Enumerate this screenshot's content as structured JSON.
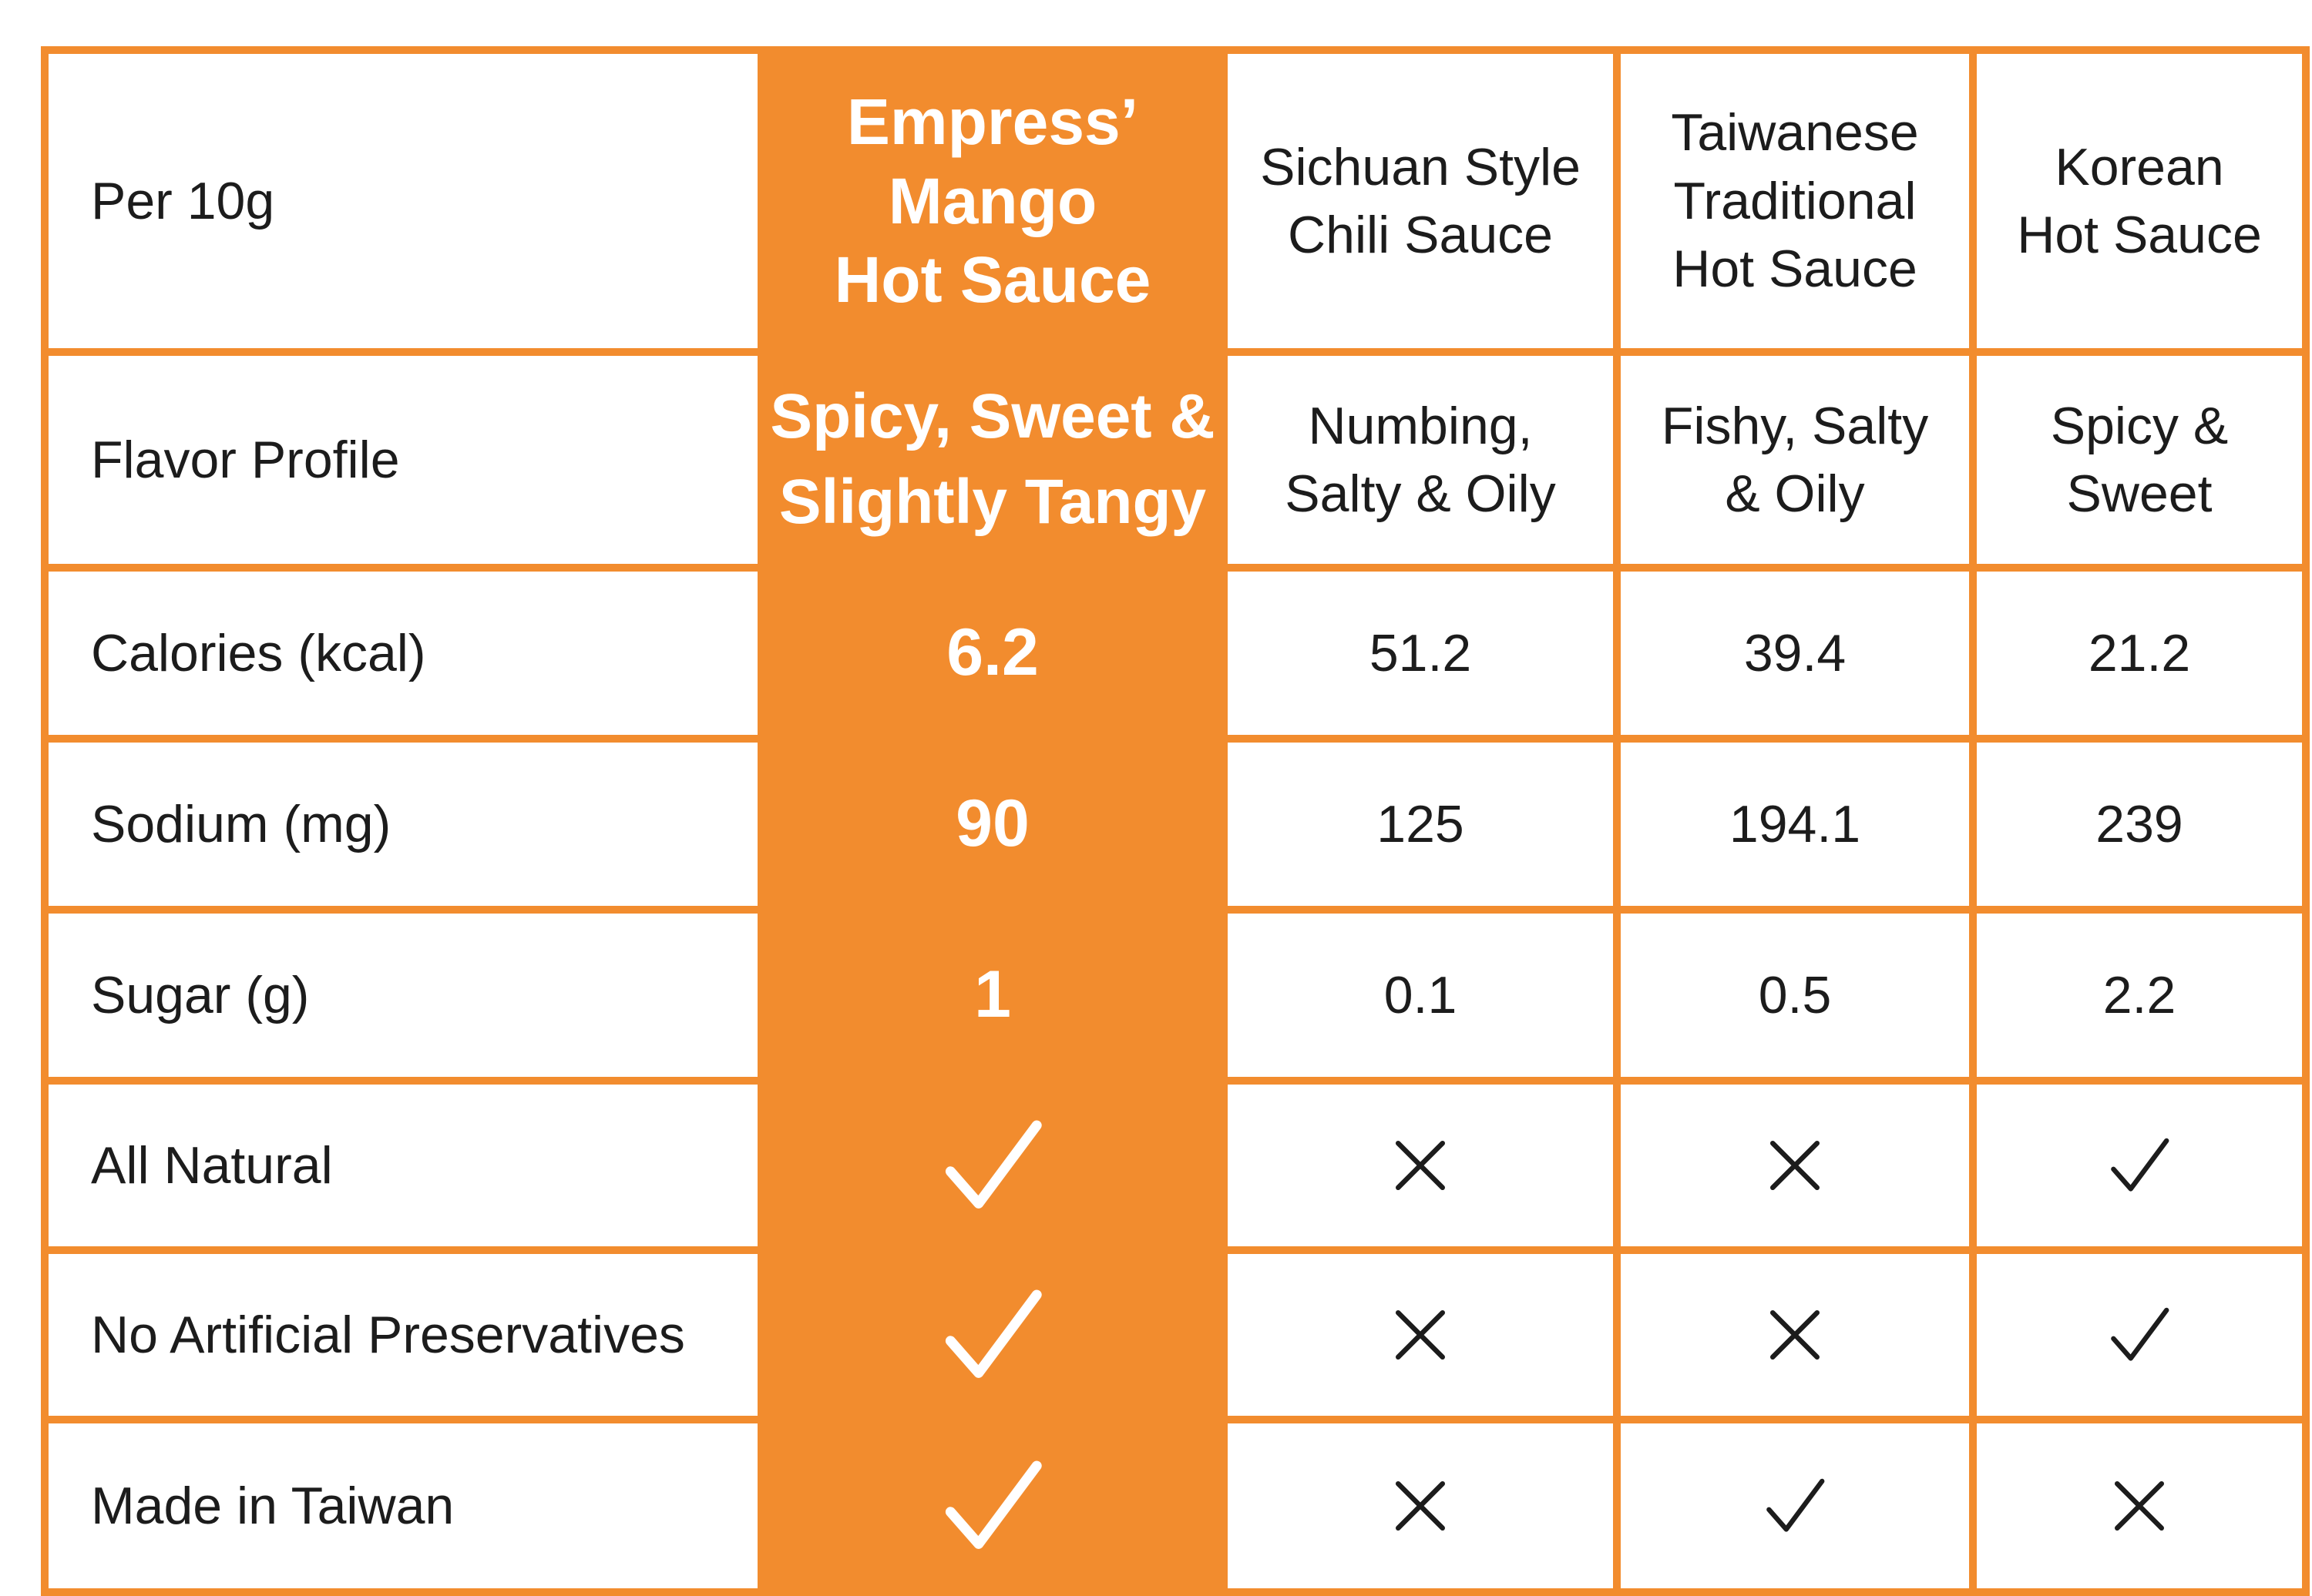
{
  "colors": {
    "accent": "#f28c2e",
    "text": "#1c1c1c",
    "background": "#ffffff"
  },
  "table": {
    "corner_label": "Per 10g",
    "columns": [
      {
        "name": "Empress’\nMango\nHot Sauce",
        "highlight": true
      },
      {
        "name": "Sichuan Style\nChili Sauce"
      },
      {
        "name": "Taiwanese\nTraditional\nHot Sauce"
      },
      {
        "name": "Korean\nHot Sauce"
      }
    ],
    "rows": [
      {
        "label": "Flavor Profile",
        "values": [
          "Spicy, Sweet &\nSlightly Tangy",
          "Numbing,\nSalty & Oily",
          "Fishy, Salty\n& Oily",
          "Spicy &\nSweet"
        ]
      },
      {
        "label": "Calories (kcal)",
        "values": [
          "6.2",
          "51.2",
          "39.4",
          "21.2"
        ]
      },
      {
        "label": "Sodium (mg)",
        "values": [
          "90",
          "125",
          "194.1",
          "239"
        ]
      },
      {
        "label": "Sugar (g)",
        "values": [
          "1",
          "0.1",
          "0.5",
          "2.2"
        ]
      },
      {
        "label": "All Natural",
        "marks": [
          "check-icon",
          "cross-icon",
          "cross-icon",
          "check-icon"
        ]
      },
      {
        "label": "No Artificial Preservatives",
        "marks": [
          "check-icon",
          "cross-icon",
          "cross-icon",
          "check-icon"
        ]
      },
      {
        "label": "Made in Taiwan",
        "marks": [
          "check-icon",
          "cross-icon",
          "check-icon",
          "cross-icon"
        ]
      }
    ]
  }
}
